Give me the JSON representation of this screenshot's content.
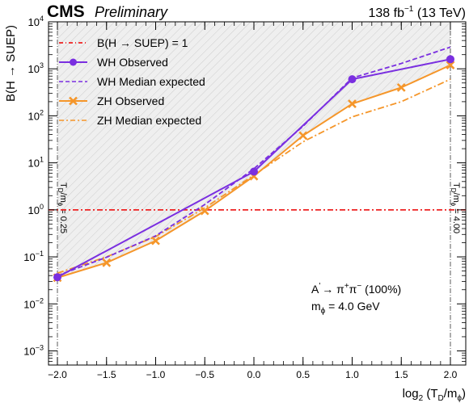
{
  "header": {
    "experiment": "CMS",
    "status": "Preliminary",
    "lumi_value": "138 fb",
    "lumi_exp": "−1",
    "lumi_energy": " (13 TeV)"
  },
  "annotations": {
    "decay_prefix": "A",
    "decay_prime": "'",
    "decay_arrow": "→ π",
    "decay_sup1": "+",
    "decay_pi2": "π",
    "decay_sup2": "−",
    "decay_suffix": " (100%)",
    "mass_m": "m",
    "mass_sub": "ϕ",
    "mass_value": " = 4.0 GeV",
    "left_bound_T": "T",
    "left_bound_D": "D",
    "left_bound_slash": "/m",
    "left_bound_phi": "ϕ",
    "left_bound_value": " = 0.25",
    "right_bound_T": "T",
    "right_bound_D": "D",
    "right_bound_slash": "/m",
    "right_bound_phi": "ϕ",
    "right_bound_value": " = 4.00"
  },
  "legend": {
    "ref_label": "B(H  → SUEP) = 1",
    "wh_obs_label": "WH Observed",
    "wh_exp_label": "WH Median expected",
    "zh_obs_label": "ZH Observed",
    "zh_exp_label": "ZH Median expected"
  },
  "axes": {
    "xlabel_pre": "log",
    "xlabel_sub": "2",
    "xlabel_mid": " (T",
    "xlabel_D": "D",
    "xlabel_slash": "/m",
    "xlabel_phi": "ϕ",
    "xlabel_end": ")",
    "ylabel": "B(H → SUEP)",
    "x_ticks": [
      "−2.0",
      "−1.5",
      "−1.0",
      "−0.5",
      "0.0",
      "0.5",
      "1.0",
      "1.5",
      "2.0"
    ],
    "y_ticks": [
      {
        "base": "10",
        "exp": "−3"
      },
      {
        "base": "10",
        "exp": "−2"
      },
      {
        "base": "10",
        "exp": "−1"
      },
      {
        "base": "10",
        "exp": "0"
      },
      {
        "base": "10",
        "exp": "1"
      },
      {
        "base": "10",
        "exp": "2"
      },
      {
        "base": "10",
        "exp": "3"
      },
      {
        "base": "10",
        "exp": "4"
      }
    ]
  },
  "chart_data": {
    "type": "line",
    "xlabel": "log2(TD/mϕ)",
    "ylabel": "B(H → SUEP)",
    "xlim": [
      -2.05,
      2.05
    ],
    "ylim": [
      0.0005,
      10000
    ],
    "y_scale": "log",
    "grid": false,
    "legend_position": "top-left",
    "excluded_region": "hatched above observed limits",
    "reference_line": {
      "y": 1,
      "name": "B(H  → SUEP) = 1",
      "color": "#ee2222",
      "style": "dash-dot"
    },
    "vertical_markers": [
      {
        "x": -2.0,
        "label": "TD/mϕ = 0.25"
      },
      {
        "x": 2.0,
        "label": "TD/mϕ = 4.00"
      }
    ],
    "series": [
      {
        "name": "WH Observed",
        "color": "#7a2fe0",
        "style": "solid",
        "marker": "circle",
        "x": [
          -2.0,
          0.0,
          1.0,
          2.0
        ],
        "y": [
          0.037,
          6.5,
          600,
          1600
        ]
      },
      {
        "name": "WH Median expected",
        "color": "#7a2fe0",
        "style": "dashed",
        "marker": "none",
        "x": [
          -2.0,
          -1.5,
          -1.0,
          -0.5,
          0.0,
          0.5,
          1.0,
          1.5,
          2.0
        ],
        "y": [
          0.04,
          0.098,
          0.28,
          1.3,
          7.5,
          60,
          640,
          1300,
          2900
        ]
      },
      {
        "name": "ZH Observed",
        "color": "#f5962a",
        "style": "solid",
        "marker": "x",
        "x": [
          -2.0,
          -1.5,
          -1.0,
          -0.5,
          0.0,
          0.5,
          1.0,
          1.5,
          2.0
        ],
        "y": [
          0.036,
          0.075,
          0.22,
          0.95,
          5.2,
          38,
          180,
          400,
          1200
        ]
      },
      {
        "name": "ZH Median expected",
        "color": "#f5962a",
        "style": "dash-dot",
        "marker": "none",
        "x": [
          -2.0,
          -1.5,
          -1.0,
          -0.5,
          0.0,
          0.5,
          1.0,
          1.5,
          2.0
        ],
        "y": [
          0.045,
          0.1,
          0.27,
          1.1,
          5.5,
          28,
          95,
          200,
          600
        ]
      }
    ]
  }
}
